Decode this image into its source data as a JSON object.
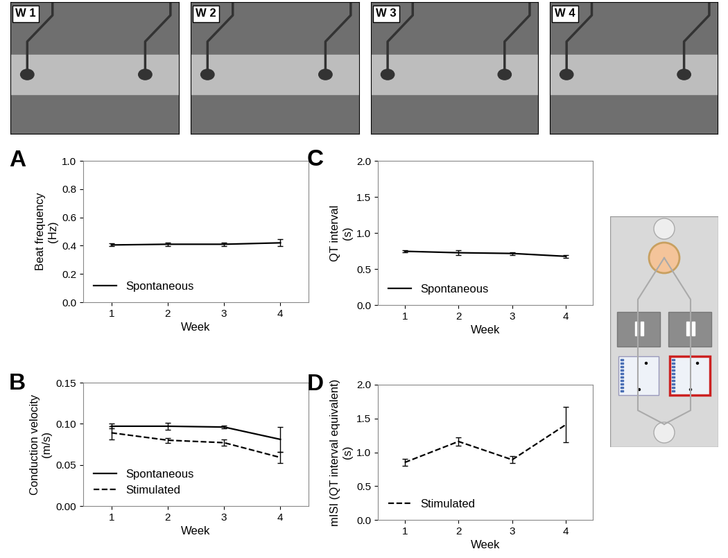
{
  "images": {
    "labels": [
      "W 1",
      "W 2",
      "W 3",
      "W 4"
    ]
  },
  "chart_data": [
    {
      "type": "line",
      "title": "A",
      "x_label": "Week",
      "y_label": "Beat frequency\n(Hz)",
      "x": [
        1,
        2,
        3,
        4
      ],
      "xlim": [
        0.5,
        4.5
      ],
      "xticks": [
        1,
        2,
        3,
        4
      ],
      "ylim": [
        0,
        1.0
      ],
      "yticks": [
        {
          "value": 0,
          "label": "0.0"
        },
        0.2,
        0.4,
        0.6,
        0.8,
        1.0
      ],
      "legend": "lower left",
      "series": [
        {
          "name": "Spontaneous",
          "color": "#000000",
          "line_style": "solid",
          "values": [
            0.405,
            0.41,
            0.41,
            0.42
          ],
          "errors": [
            0.01,
            0.012,
            0.012,
            0.025
          ]
        }
      ]
    },
    {
      "type": "line",
      "title": "B",
      "x_label": "Week",
      "y_label": "Conduction velocity\n(m/s)",
      "x": [
        1,
        2,
        3,
        4
      ],
      "xlim": [
        0.5,
        4.5
      ],
      "xticks": [
        1,
        2,
        3,
        4
      ],
      "ylim": [
        0,
        0.15
      ],
      "yticks": [
        {
          "value": 0,
          "label": "0.00"
        },
        0.05,
        {
          "value": 0.1,
          "label": "0.10"
        },
        0.15
      ],
      "legend": "lower left",
      "series": [
        {
          "name": "Spontaneous",
          "color": "#000000",
          "line_style": "solid",
          "values": [
            0.097,
            0.097,
            0.096,
            0.081
          ],
          "errors": [
            0.003,
            0.004,
            0.002,
            0.015
          ]
        },
        {
          "name": "Stimulated",
          "color": "#000000",
          "line_style": "dashed",
          "values": [
            0.089,
            0.08,
            0.077,
            0.059
          ],
          "errors": [
            0.008,
            0.003,
            0.004,
            0.007
          ]
        }
      ]
    },
    {
      "type": "line",
      "title": "C",
      "x_label": "Week",
      "y_label": "QT interval\n(s)",
      "x": [
        1,
        2,
        3,
        4
      ],
      "xlim": [
        0.5,
        4.5
      ],
      "xticks": [
        1,
        2,
        3,
        4
      ],
      "ylim": [
        0,
        2.0
      ],
      "yticks": [
        {
          "value": 0,
          "label": "0.0"
        },
        0.5,
        1.0,
        1.5,
        2.0
      ],
      "legend": "lower left",
      "series": [
        {
          "name": "Spontaneous",
          "color": "#000000",
          "line_style": "solid",
          "values": [
            0.745,
            0.725,
            0.715,
            0.675
          ],
          "errors": [
            0.01,
            0.03,
            0.02,
            0.02
          ]
        }
      ]
    },
    {
      "type": "line",
      "title": "D",
      "x_label": "Week",
      "y_label": "mISI (QT interval equivalent)\n(s)",
      "x": [
        1,
        2,
        3,
        4
      ],
      "xlim": [
        0.5,
        4.5
      ],
      "xticks": [
        1,
        2,
        3,
        4
      ],
      "ylim": [
        0,
        2.0
      ],
      "yticks": [
        {
          "value": 0,
          "label": "0.0"
        },
        0.5,
        1.0,
        1.5,
        2.0
      ],
      "legend": "lower left",
      "series": [
        {
          "name": "Stimulated",
          "color": "#000000",
          "line_style": "dashed",
          "values": [
            0.85,
            1.16,
            0.89,
            1.41
          ],
          "errors": [
            0.05,
            0.06,
            0.05,
            0.26
          ]
        }
      ]
    }
  ]
}
